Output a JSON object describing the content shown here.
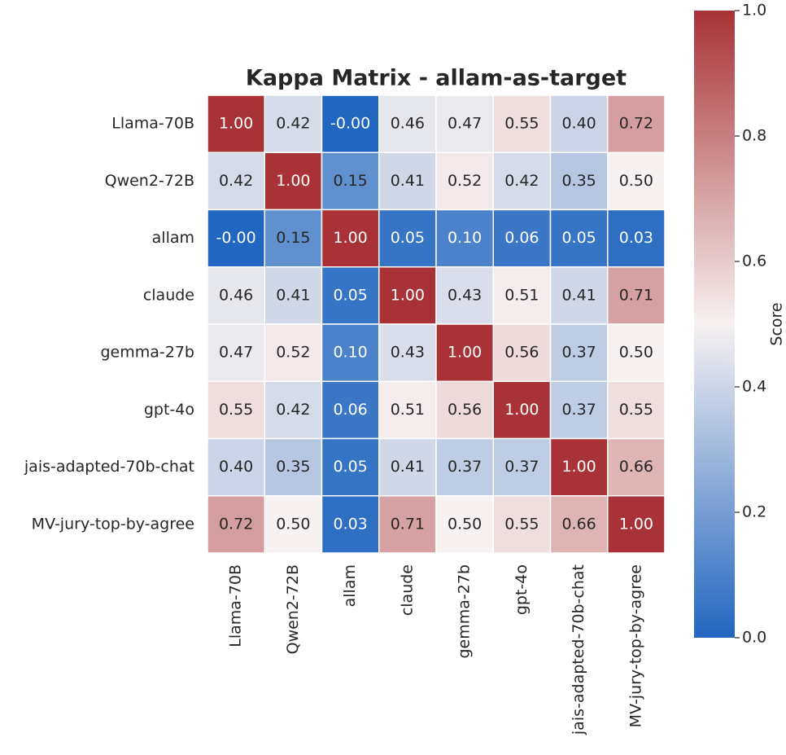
{
  "chart_data": {
    "type": "heatmap",
    "title": "Kappa Matrix - allam-as-target",
    "x_categories": [
      "Llama-70B",
      "Qwen2-72B",
      "allam",
      "claude",
      "gemma-27b",
      "gpt-4o",
      "jais-adapted-70b-chat",
      "MV-jury-top-by-agree"
    ],
    "y_categories": [
      "Llama-70B",
      "Qwen2-72B",
      "allam",
      "claude",
      "gemma-27b",
      "gpt-4o",
      "jais-adapted-70b-chat",
      "MV-jury-top-by-agree"
    ],
    "values": [
      [
        1,
        0.42,
        -0.001,
        0.46,
        0.47,
        0.55,
        0.4,
        0.72
      ],
      [
        0.42,
        1,
        0.15,
        0.41,
        0.52,
        0.42,
        0.35,
        0.5
      ],
      [
        -0.001,
        0.15,
        1,
        0.05,
        0.1,
        0.06,
        0.05,
        0.03
      ],
      [
        0.46,
        0.41,
        0.05,
        1,
        0.43,
        0.51,
        0.41,
        0.71
      ],
      [
        0.47,
        0.52,
        0.1,
        0.43,
        1,
        0.56,
        0.37,
        0.5
      ],
      [
        0.55,
        0.42,
        0.06,
        0.51,
        0.56,
        1,
        0.37,
        0.55
      ],
      [
        0.4,
        0.35,
        0.05,
        0.41,
        0.37,
        0.37,
        1,
        0.66
      ],
      [
        0.72,
        0.5,
        0.03,
        0.71,
        0.5,
        0.55,
        0.66,
        1
      ]
    ],
    "value_labels": [
      [
        "1.00",
        "0.42",
        "-0.00",
        "0.46",
        "0.47",
        "0.55",
        "0.40",
        "0.72"
      ],
      [
        "0.42",
        "1.00",
        "0.15",
        "0.41",
        "0.52",
        "0.42",
        "0.35",
        "0.50"
      ],
      [
        "-0.00",
        "0.15",
        "1.00",
        "0.05",
        "0.10",
        "0.06",
        "0.05",
        "0.03"
      ],
      [
        "0.46",
        "0.41",
        "0.05",
        "1.00",
        "0.43",
        "0.51",
        "0.41",
        "0.71"
      ],
      [
        "0.47",
        "0.52",
        "0.10",
        "0.43",
        "1.00",
        "0.56",
        "0.37",
        "0.50"
      ],
      [
        "0.55",
        "0.42",
        "0.06",
        "0.51",
        "0.56",
        "1.00",
        "0.37",
        "0.55"
      ],
      [
        "0.40",
        "0.35",
        "0.05",
        "0.41",
        "0.37",
        "0.37",
        "1.00",
        "0.66"
      ],
      [
        "0.72",
        "0.50",
        "0.03",
        "0.71",
        "0.50",
        "0.55",
        "0.66",
        "1.00"
      ]
    ],
    "colorbar_label": "Score",
    "vlim": [
      0,
      1
    ],
    "colorbar_ticks": [
      {
        "value": 0,
        "label": "0.0"
      },
      0.2,
      0.4,
      0.6,
      0.8,
      {
        "value": 1,
        "label": "1.0"
      }
    ],
    "colormap": [
      "#2166c0",
      "#f7f1f1",
      "#a83236"
    ]
  }
}
